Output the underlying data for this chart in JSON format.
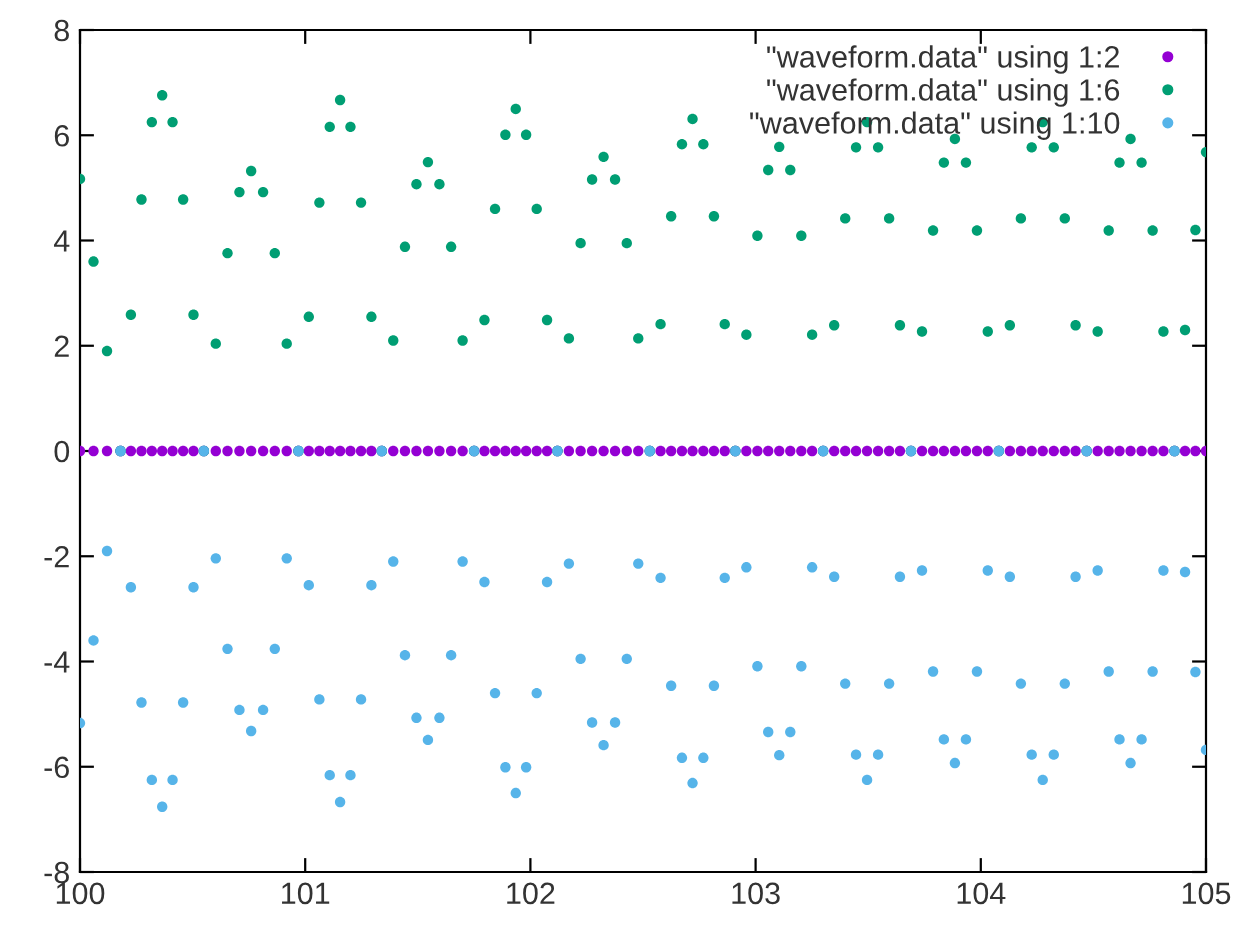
{
  "chart_data": {
    "type": "scatter",
    "xlim": [
      100,
      105
    ],
    "ylim": [
      -8,
      8
    ],
    "xticks": [
      100,
      101,
      102,
      103,
      104,
      105
    ],
    "yticks": [
      -8,
      -6,
      -4,
      -2,
      0,
      2,
      4,
      6,
      8
    ],
    "grid": false,
    "legend": "top right",
    "marker": "circle",
    "x": [
      100.0,
      100.06,
      100.12,
      100.18,
      100.226,
      100.273,
      100.319,
      100.365,
      100.411,
      100.458,
      100.504,
      100.55,
      100.603,
      100.655,
      100.708,
      100.76,
      100.813,
      100.865,
      100.918,
      100.97,
      101.016,
      101.063,
      101.109,
      101.155,
      101.201,
      101.248,
      101.294,
      101.34,
      101.391,
      101.443,
      101.494,
      101.545,
      101.596,
      101.648,
      101.699,
      101.75,
      101.796,
      101.843,
      101.889,
      101.935,
      101.981,
      102.028,
      102.074,
      102.12,
      102.171,
      102.223,
      102.274,
      102.325,
      102.376,
      102.428,
      102.479,
      102.53,
      102.578,
      102.625,
      102.673,
      102.72,
      102.768,
      102.815,
      102.863,
      102.91,
      102.959,
      103.008,
      103.056,
      103.105,
      103.154,
      103.203,
      103.251,
      103.3,
      103.349,
      103.398,
      103.446,
      103.495,
      103.544,
      103.593,
      103.641,
      103.69,
      103.739,
      103.788,
      103.836,
      103.885,
      103.934,
      103.983,
      104.031,
      104.08,
      104.129,
      104.178,
      104.226,
      104.275,
      104.324,
      104.373,
      104.421,
      104.47,
      104.519,
      104.568,
      104.616,
      104.665,
      104.714,
      104.763,
      104.811,
      104.86,
      104.907,
      104.953,
      105.0
    ],
    "series": [
      {
        "name": "\"waveform.data\" using 1:2",
        "color": "#9400d3",
        "values": [
          0,
          0,
          0,
          0,
          0,
          0,
          0,
          0,
          0,
          0,
          0,
          0,
          0,
          0,
          0,
          0,
          0,
          0,
          0,
          0,
          0,
          0,
          0,
          0,
          0,
          0,
          0,
          0,
          0,
          0,
          0,
          0,
          0,
          0,
          0,
          0,
          0,
          0,
          0,
          0,
          0,
          0,
          0,
          0,
          0,
          0,
          0,
          0,
          0,
          0,
          0,
          0,
          0,
          0,
          0,
          0,
          0,
          0,
          0,
          0,
          0,
          0,
          0,
          0,
          0,
          0,
          0,
          0,
          0,
          0,
          0,
          0,
          0,
          0,
          0,
          0,
          0,
          0,
          0,
          0,
          0,
          0,
          0,
          0,
          0,
          0,
          0,
          0,
          0,
          0,
          0,
          0,
          0,
          0,
          0,
          0,
          0,
          0,
          0,
          0,
          0,
          0,
          0
        ]
      },
      {
        "name": "\"waveform.data\" using 1:6",
        "color": "#009e73",
        "values": [
          5.17,
          3.6,
          1.9,
          0,
          2.59,
          4.78,
          6.25,
          6.76,
          6.25,
          4.78,
          2.59,
          0,
          2.04,
          3.76,
          4.92,
          5.32,
          4.92,
          3.76,
          2.04,
          0,
          2.55,
          4.72,
          6.16,
          6.67,
          6.16,
          4.72,
          2.55,
          0,
          2.1,
          3.88,
          5.07,
          5.49,
          5.07,
          3.88,
          2.1,
          0,
          2.49,
          4.6,
          6.01,
          6.5,
          6.01,
          4.6,
          2.49,
          0,
          2.14,
          3.95,
          5.16,
          5.59,
          5.16,
          3.95,
          2.14,
          0,
          2.41,
          4.46,
          5.83,
          6.31,
          5.83,
          4.46,
          2.41,
          0,
          2.21,
          4.09,
          5.34,
          5.78,
          5.34,
          4.09,
          2.21,
          0,
          2.39,
          4.42,
          5.77,
          6.25,
          5.77,
          4.42,
          2.39,
          0,
          2.27,
          4.19,
          5.48,
          5.93,
          5.48,
          4.19,
          2.27,
          0,
          2.39,
          4.42,
          5.77,
          6.25,
          5.77,
          4.42,
          2.39,
          0,
          2.27,
          4.19,
          5.48,
          5.93,
          5.48,
          4.19,
          2.27,
          0,
          2.3,
          4.2,
          5.68
        ]
      },
      {
        "name": "\"waveform.data\" using 1:10",
        "color": "#56b4e9",
        "values": [
          -5.17,
          -3.6,
          -1.9,
          0,
          -2.59,
          -4.78,
          -6.25,
          -6.76,
          -6.25,
          -4.78,
          -2.59,
          0,
          -2.04,
          -3.76,
          -4.92,
          -5.32,
          -4.92,
          -3.76,
          -2.04,
          0,
          -2.55,
          -4.72,
          -6.16,
          -6.67,
          -6.16,
          -4.72,
          -2.55,
          0,
          -2.1,
          -3.88,
          -5.07,
          -5.49,
          -5.07,
          -3.88,
          -2.1,
          0,
          -2.49,
          -4.6,
          -6.01,
          -6.5,
          -6.01,
          -4.6,
          -2.49,
          0,
          -2.14,
          -3.95,
          -5.16,
          -5.59,
          -5.16,
          -3.95,
          -2.14,
          0,
          -2.41,
          -4.46,
          -5.83,
          -6.31,
          -5.83,
          -4.46,
          -2.41,
          0,
          -2.21,
          -4.09,
          -5.34,
          -5.78,
          -5.34,
          -4.09,
          -2.21,
          0,
          -2.39,
          -4.42,
          -5.77,
          -6.25,
          -5.77,
          -4.42,
          -2.39,
          0,
          -2.27,
          -4.19,
          -5.48,
          -5.93,
          -5.48,
          -4.19,
          -2.27,
          0,
          -2.39,
          -4.42,
          -5.77,
          -6.25,
          -5.77,
          -4.42,
          -2.39,
          0,
          -2.27,
          -4.19,
          -5.48,
          -5.93,
          -5.48,
          -4.19,
          -2.27,
          0,
          -2.3,
          -4.2,
          -5.68
        ]
      }
    ]
  }
}
